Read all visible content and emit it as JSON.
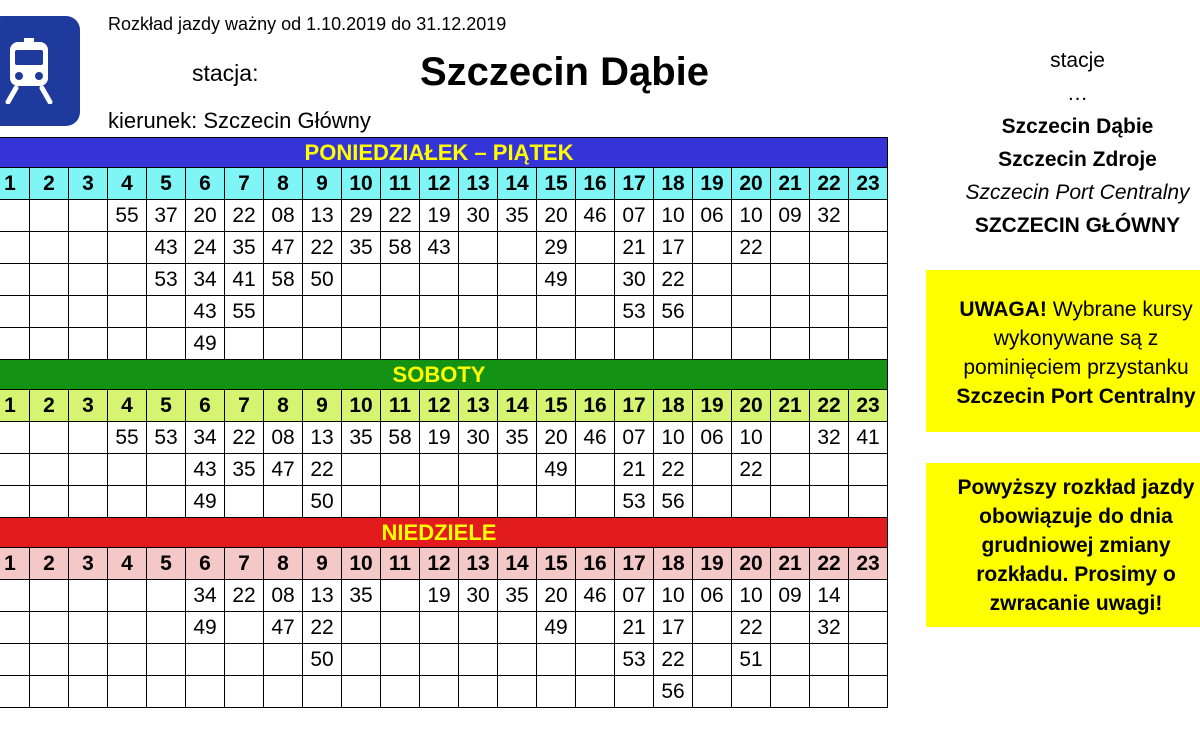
{
  "header": {
    "validity": "Rozkład jazdy ważny od 1.10.2019 do 31.12.2019",
    "station_label": "stacja:",
    "station_name": "Szczecin Dąbie",
    "direction": "kierunek: Szczecin Główny"
  },
  "logo": {
    "icon": "train-icon",
    "color": "#1e3a9c"
  },
  "colors": {
    "weekday_banner": "#3434d8",
    "weekday_hours": "#7ff5f5",
    "saturday_banner": "#139213",
    "saturday_hours": "#d5f572",
    "sunday_banner": "#e21c1c",
    "sunday_hours": "#f5c8c8",
    "banner_text": "#ffff00",
    "notice_bg": "#ffff00"
  },
  "hours": [
    "1",
    "2",
    "3",
    "4",
    "5",
    "6",
    "7",
    "8",
    "9",
    "10",
    "11",
    "12",
    "13",
    "14",
    "15",
    "16",
    "17",
    "18",
    "19",
    "20",
    "21",
    "22",
    "23"
  ],
  "sections": [
    {
      "title": "PONIEDZIAŁEK – PIĄTEK",
      "rows": [
        [
          "",
          "",
          "",
          "55",
          "37",
          "20",
          "22",
          "08",
          "13",
          "29",
          "22",
          "19",
          "30",
          "35",
          "20",
          "46",
          "07",
          "10",
          "06",
          "10",
          "09",
          "32",
          ""
        ],
        [
          "",
          "",
          "",
          "",
          "43",
          "24",
          "35",
          "47",
          "22",
          "35",
          "58",
          "43",
          "",
          "",
          "29",
          "",
          "21",
          "17",
          "",
          "22",
          "",
          "",
          ""
        ],
        [
          "",
          "",
          "",
          "",
          "53",
          "34",
          "41",
          "58",
          "50",
          "",
          "",
          "",
          "",
          "",
          "49",
          "",
          "30",
          "22",
          "",
          "",
          "",
          "",
          ""
        ],
        [
          "",
          "",
          "",
          "",
          "",
          "43",
          "55",
          "",
          "",
          "",
          "",
          "",
          "",
          "",
          "",
          "",
          "53",
          "56",
          "",
          "",
          "",
          "",
          ""
        ],
        [
          "",
          "",
          "",
          "",
          "",
          "49",
          "",
          "",
          "",
          "",
          "",
          "",
          "",
          "",
          "",
          "",
          "",
          "",
          "",
          "",
          "",
          "",
          ""
        ]
      ]
    },
    {
      "title": "SOBOTY",
      "rows": [
        [
          "",
          "",
          "",
          "55",
          "53",
          "34",
          "22",
          "08",
          "13",
          "35",
          "58",
          "19",
          "30",
          "35",
          "20",
          "46",
          "07",
          "10",
          "06",
          "10",
          "",
          "32",
          "41"
        ],
        [
          "",
          "",
          "",
          "",
          "",
          "43",
          "35",
          "47",
          "22",
          "",
          "",
          "",
          "",
          "",
          "49",
          "",
          "21",
          "22",
          "",
          "22",
          "",
          "",
          ""
        ],
        [
          "",
          "",
          "",
          "",
          "",
          "49",
          "",
          "",
          "50",
          "",
          "",
          "",
          "",
          "",
          "",
          "",
          "53",
          "56",
          "",
          "",
          "",
          "",
          ""
        ]
      ]
    },
    {
      "title": "NIEDZIELE",
      "rows": [
        [
          "",
          "",
          "",
          "",
          "",
          "34",
          "22",
          "08",
          "13",
          "35",
          "",
          "19",
          "30",
          "35",
          "20",
          "46",
          "07",
          "10",
          "06",
          "10",
          "09",
          "14",
          ""
        ],
        [
          "",
          "",
          "",
          "",
          "",
          "49",
          "",
          "47",
          "22",
          "",
          "",
          "",
          "",
          "",
          "49",
          "",
          "21",
          "17",
          "",
          "22",
          "",
          "32",
          ""
        ],
        [
          "",
          "",
          "",
          "",
          "",
          "",
          "",
          "",
          "50",
          "",
          "",
          "",
          "",
          "",
          "",
          "",
          "53",
          "22",
          "",
          "51",
          "",
          "",
          ""
        ],
        [
          "",
          "",
          "",
          "",
          "",
          "",
          "",
          "",
          "",
          "",
          "",
          "",
          "",
          "",
          "",
          "",
          "",
          "56",
          "",
          "",
          "",
          "",
          ""
        ]
      ]
    }
  ],
  "stations": {
    "heading": "stacje",
    "ellipsis": "…",
    "list": [
      {
        "name": "Szczecin Dąbie",
        "style": "bold"
      },
      {
        "name": "Szczecin Zdroje",
        "style": "bold"
      },
      {
        "name": "Szczecin Port Centralny",
        "style": "italic"
      },
      {
        "name": "SZCZECIN GŁÓWNY",
        "style": "bold"
      }
    ]
  },
  "notice1": {
    "prefix": "UWAGA!",
    "line1_rest": " Wybrane kursy",
    "line2": "wykonywane są z",
    "line3": "pominięciem przystanku",
    "line4": "Szczecin Port Centralny"
  },
  "notice2": {
    "lines": [
      "Powyższy rozkład jazdy",
      "obowiązuje do dnia",
      "grudniowej zmiany",
      "rozkładu. Prosimy o",
      "zwracanie uwagi!"
    ]
  }
}
